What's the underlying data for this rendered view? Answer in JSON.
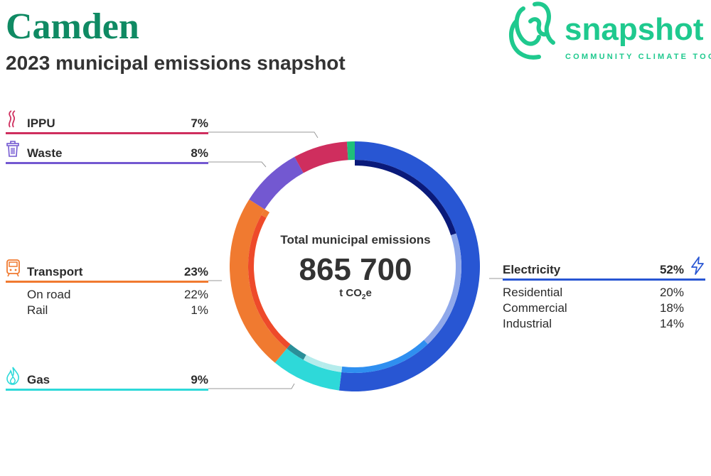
{
  "header": {
    "title": "Camden",
    "subtitle": "2023 municipal emissions snapshot"
  },
  "logo": {
    "wordmark": "snapshot",
    "tagline": "COMMUNITY CLIMATE TOOL"
  },
  "center": {
    "label": "Total municipal emissions",
    "value": "865 700",
    "unit_prefix": "t CO",
    "unit_sub": "2",
    "unit_suffix": "e"
  },
  "colors": {
    "brand": "#1fc98e",
    "title": "#0f8a63",
    "electricity": "#2856d3",
    "gas": "#2ed9d9",
    "transport": "#f07a30",
    "waste": "#7358d1",
    "ippu": "#cf2e5e"
  },
  "chart_data": {
    "type": "pie",
    "subtype": "donut",
    "total": 865700,
    "total_unit": "t CO2e",
    "categories": [
      {
        "name": "Electricity",
        "pct_label": "52%",
        "value": 52,
        "color": "#2856d3",
        "icon": "lightning-icon",
        "side": "right",
        "subcategories": [
          {
            "name": "Residential",
            "pct_label": "20%",
            "value": 20,
            "color": "#0a1a7a"
          },
          {
            "name": "Commercial",
            "pct_label": "18%",
            "value": 18,
            "color": "#8fa8ea"
          },
          {
            "name": "Industrial",
            "pct_label": "14%",
            "value": 14,
            "color": "#2f8ff0"
          }
        ]
      },
      {
        "name": "Gas",
        "pct_label": "9%",
        "value": 9,
        "color": "#2ed9d9",
        "icon": "flame-icon",
        "side": "left",
        "subcategories": [
          {
            "name": "",
            "pct_label": "",
            "value": 3,
            "color": "#b5ecec"
          },
          {
            "name": "",
            "pct_label": "",
            "value": 3,
            "color": "#b5ecec"
          },
          {
            "name": "",
            "pct_label": "",
            "value": 3,
            "color": "#2a8f99"
          }
        ]
      },
      {
        "name": "Transport",
        "pct_label": "23%",
        "value": 23,
        "color": "#f07a30",
        "icon": "train-icon",
        "side": "left",
        "subcategories": [
          {
            "name": "On road",
            "pct_label": "22%",
            "value": 22,
            "color": "#ee4a2a"
          },
          {
            "name": "Rail",
            "pct_label": "1%",
            "value": 1,
            "color": "#f07a30"
          }
        ]
      },
      {
        "name": "Waste",
        "pct_label": "8%",
        "value": 8,
        "color": "#7358d1",
        "icon": "bin-icon",
        "side": "left",
        "subcategories": []
      },
      {
        "name": "IPPU",
        "pct_label": "7%",
        "value": 7,
        "color": "#cf2e5e",
        "icon": "smoke-icon",
        "side": "left",
        "subcategories": []
      },
      {
        "name": "",
        "pct_label": "",
        "value": 1,
        "color": "#1fbf7a",
        "icon": "",
        "side": "",
        "subcategories": []
      }
    ]
  }
}
